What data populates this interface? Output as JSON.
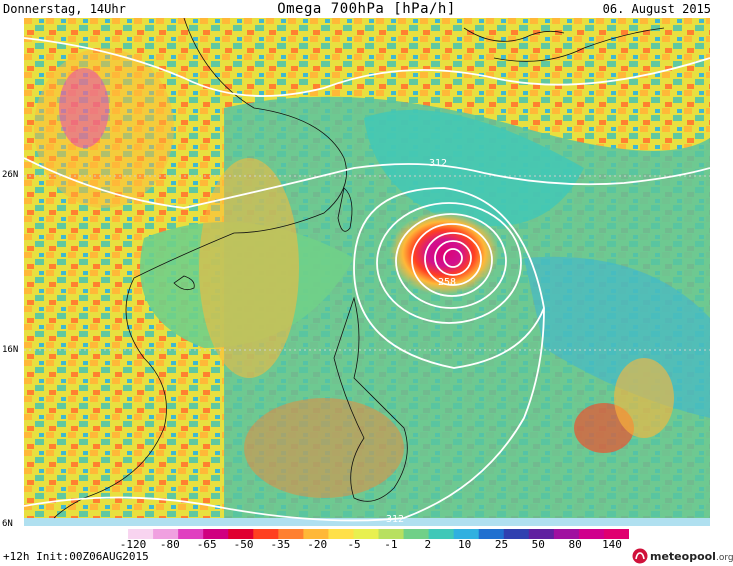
{
  "header": {
    "left": "Donnerstag, 14Uhr",
    "center": "Omega 700hPa [hPa/h]",
    "right": "06. August 2015"
  },
  "lat_labels": [
    "26N",
    "16N",
    "6N"
  ],
  "contour_labels": [
    "312",
    "258",
    "312"
  ],
  "legend": {
    "ticks": [
      "-120",
      "-80",
      "-65",
      "-50",
      "-35",
      "-20",
      "-5",
      "-1",
      "2",
      "10",
      "25",
      "50",
      "80",
      "140"
    ],
    "colors": [
      "#ffffff",
      "#f8d4f0",
      "#f0a0e0",
      "#e040c0",
      "#d00080",
      "#e00030",
      "#ff4020",
      "#ff8030",
      "#ffb838",
      "#ffe048",
      "#e8f050",
      "#b8e060",
      "#70d088",
      "#40c8b8",
      "#30b0e0",
      "#2070d0",
      "#3040b0",
      "#6020a0",
      "#a010a0",
      "#d0008c",
      "#e00070"
    ]
  },
  "footer": {
    "left": "+12h Init:00Z06AUG2015",
    "logo_name": "meteopool",
    "logo_suffix": ".org"
  }
}
